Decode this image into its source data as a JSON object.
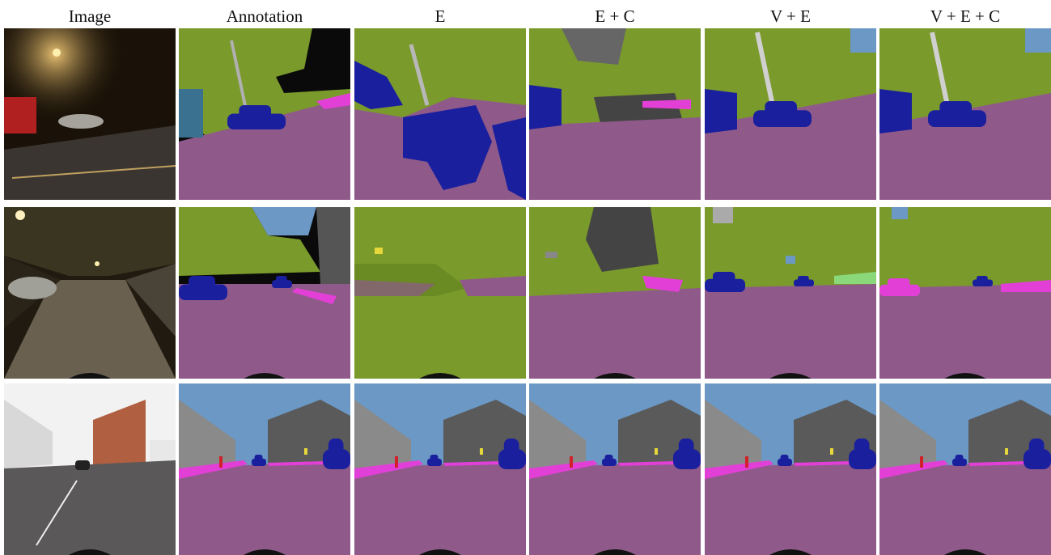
{
  "figure": {
    "columns": [
      "Image",
      "Annotation",
      "E",
      "E + C",
      "V + E",
      "V + E + C"
    ],
    "rows": [
      {
        "scene": "night street with street lamp and passing cars"
      },
      {
        "scene": "night street lined with trees and parked cars"
      },
      {
        "scene": "daytime town street junction with brick buildings"
      }
    ]
  }
}
